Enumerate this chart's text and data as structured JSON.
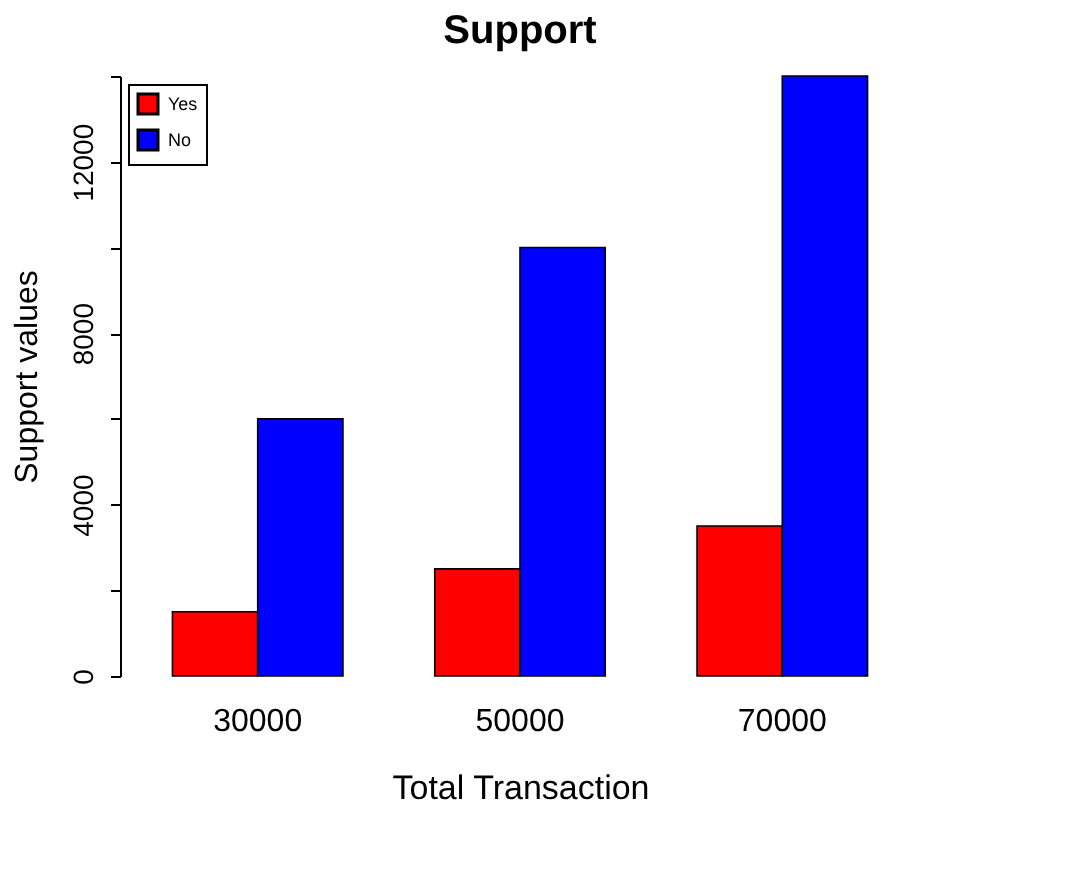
{
  "chart_data": {
    "type": "bar",
    "title": "Support",
    "xlabel": "Total Transaction",
    "ylabel": "Support values",
    "categories": [
      "30000",
      "50000",
      "70000"
    ],
    "series": [
      {
        "name": "Yes",
        "color": "#ff0000",
        "values": [
          1500,
          2500,
          3500
        ]
      },
      {
        "name": "No",
        "color": "#0000ff",
        "values": [
          6000,
          10000,
          14000
        ]
      }
    ],
    "ylim": [
      0,
      14000
    ],
    "yticks": [
      0,
      {
        "value": 2000,
        "label": null
      },
      4000,
      {
        "value": 6000,
        "label": null
      },
      8000,
      {
        "value": 10000,
        "label": null
      },
      12000,
      {
        "value": 14000,
        "label": null
      }
    ],
    "grid": false,
    "legend": "top left"
  }
}
